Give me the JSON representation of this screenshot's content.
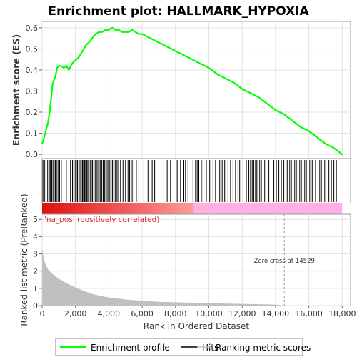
{
  "chart_data": {
    "type": "line",
    "title": "Enrichment plot: HALLMARK_HYPOXIA",
    "xlabel": "Rank in Ordered Dataset",
    "ylabel_top": "Enrichment score (ES)",
    "ylabel_bottom": "Ranked list metric (PreRanked)",
    "xlim": [
      0,
      18500
    ],
    "x_ticks": [
      0,
      2000,
      4000,
      6000,
      8000,
      10000,
      12000,
      14000,
      16000,
      18000
    ],
    "x_tick_labels": [
      "0",
      "2,000",
      "4,000",
      "6,000",
      "8,000",
      "10,000",
      "12,000",
      "14,000",
      "16,000",
      "18,000"
    ],
    "es_ylim": [
      -0.02,
      0.63
    ],
    "es_ticks": [
      0.0,
      0.1,
      0.2,
      0.3,
      0.4,
      0.5,
      0.6
    ],
    "es_tick_labels": [
      "0.0",
      "0.1",
      "0.2",
      "0.3",
      "0.4",
      "0.5",
      "0.6"
    ],
    "metric_ylim": [
      0,
      5.3
    ],
    "metric_ticks": [
      0,
      1,
      2,
      3,
      4,
      5
    ],
    "metric_tick_labels": [
      "0",
      "1",
      "2",
      "3",
      "4",
      "5"
    ],
    "enrichment_profile": {
      "name": "Enrichment profile",
      "color": "#00ff00",
      "x": [
        0,
        80,
        150,
        250,
        350,
        450,
        550,
        620,
        700,
        800,
        900,
        1000,
        1100,
        1300,
        1450,
        1600,
        1800,
        1900,
        2050,
        2200,
        2350,
        2500,
        2650,
        2800,
        3000,
        3200,
        3400,
        3600,
        3800,
        4000,
        4200,
        4400,
        4600,
        4800,
        5000,
        5200,
        5400,
        5600,
        5800,
        6000,
        6500,
        7000,
        7500,
        8000,
        8500,
        9000,
        9500,
        10000,
        10500,
        11000,
        11500,
        12000,
        12500,
        13000,
        13500,
        14000,
        14500,
        15000,
        15500,
        16000,
        16500,
        17000,
        17500,
        18000
      ],
      "y": [
        0.05,
        0.07,
        0.09,
        0.12,
        0.15,
        0.2,
        0.27,
        0.33,
        0.35,
        0.37,
        0.41,
        0.42,
        0.42,
        0.41,
        0.42,
        0.4,
        0.43,
        0.44,
        0.45,
        0.46,
        0.48,
        0.5,
        0.52,
        0.53,
        0.55,
        0.57,
        0.58,
        0.58,
        0.59,
        0.59,
        0.6,
        0.59,
        0.59,
        0.58,
        0.58,
        0.58,
        0.59,
        0.58,
        0.57,
        0.57,
        0.55,
        0.53,
        0.51,
        0.49,
        0.47,
        0.45,
        0.43,
        0.41,
        0.38,
        0.36,
        0.34,
        0.31,
        0.29,
        0.27,
        0.24,
        0.21,
        0.19,
        0.16,
        0.13,
        0.11,
        0.08,
        0.05,
        0.03,
        0.0
      ]
    },
    "hits": {
      "name": "Hits",
      "color": "#000000",
      "positions": [
        50,
        140,
        230,
        330,
        410,
        470,
        520,
        580,
        650,
        720,
        790,
        860,
        950,
        1050,
        1150,
        1450,
        1700,
        1820,
        1900,
        1980,
        2050,
        2120,
        2200,
        2270,
        2350,
        2420,
        2480,
        2550,
        2610,
        2680,
        2740,
        2800,
        2880,
        2950,
        3020,
        3100,
        3180,
        3260,
        3340,
        3420,
        3500,
        3580,
        3660,
        3740,
        3820,
        3900,
        3980,
        4060,
        4140,
        4220,
        4300,
        4380,
        4460,
        4540,
        4700,
        4850,
        5000,
        5150,
        5250,
        5400,
        5500,
        5650,
        5800,
        6100,
        6350,
        6600,
        6750,
        7300,
        7500,
        7700,
        8100,
        8300,
        8500,
        8600,
        8750,
        9050,
        9200,
        9300,
        9400,
        9550,
        9650,
        9850,
        10050,
        10250,
        10400,
        10650,
        10800,
        10950,
        11150,
        11300,
        11450,
        11600,
        11750,
        11850,
        12050,
        12250,
        12400,
        12500,
        12600,
        12700,
        12800,
        12880,
        12950,
        13050,
        13150,
        13350,
        13600,
        13900,
        14050,
        14200,
        14350,
        14500,
        14700,
        14850,
        14950,
        15050,
        15150,
        15250,
        15350,
        15450,
        15550,
        15650,
        15750,
        15850,
        15950,
        16050,
        16200,
        16400,
        16550,
        16650,
        16750,
        16850,
        16950,
        17200,
        17350,
        17500,
        17650
      ]
    },
    "ranking_metric": {
      "name": "Ranking metric scores",
      "color": "#c0c0c0",
      "x": [
        0,
        50,
        100,
        200,
        300,
        400,
        600,
        800,
        1000,
        1200,
        1500,
        2000,
        2500,
        3000,
        3500,
        4000,
        5000,
        6000,
        7000,
        8000,
        9000,
        10000,
        11000,
        12000,
        13000,
        14000,
        14529,
        18000
      ],
      "y": [
        3.4,
        3.0,
        2.7,
        2.4,
        2.2,
        2.05,
        1.85,
        1.7,
        1.55,
        1.45,
        1.28,
        1.05,
        0.85,
        0.68,
        0.56,
        0.47,
        0.35,
        0.28,
        0.22,
        0.19,
        0.16,
        0.14,
        0.12,
        0.1,
        0.08,
        0.06,
        0.0,
        0.0
      ]
    },
    "zero_cross": 14529,
    "zero_cross_label": "Zero cross at 14529",
    "pos_label": "'na_pos' (positively correlated)",
    "colorbar_split": 9100,
    "colors": {
      "profile": "#00ff00",
      "hits": "#000000",
      "metric_fill": "#c0c0c0",
      "pos_bar_dark": "#e01010",
      "pos_bar_light": "#ff9a9a",
      "neg_bar": "#ffb0e0",
      "pos_text": "#e03030"
    },
    "legend": [
      "Enrichment profile",
      "Hits",
      "Ranking metric scores"
    ],
    "legend_placement": "bottom"
  }
}
